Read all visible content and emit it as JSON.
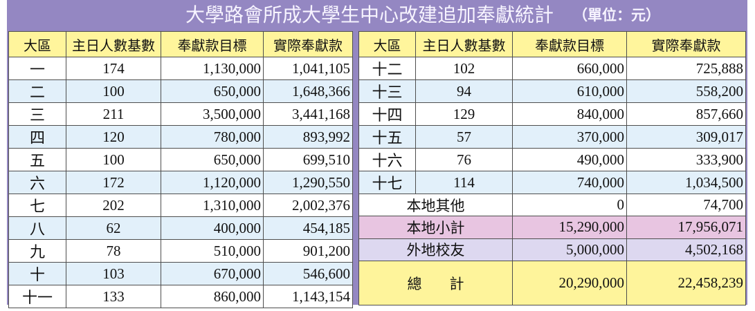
{
  "title": "大學路會所成大學生中心改建追加奉獻統計",
  "unit": "（單位：元）",
  "headers": {
    "district": "大區",
    "attendance": "主日人數基數",
    "target": "奉獻款目標",
    "actual": "實際奉獻款"
  },
  "left_rows": [
    {
      "district": "一",
      "attendance": "174",
      "target": "1,130,000",
      "actual": "1,041,105"
    },
    {
      "district": "二",
      "attendance": "100",
      "target": "650,000",
      "actual": "1,648,366"
    },
    {
      "district": "三",
      "attendance": "211",
      "target": "3,500,000",
      "actual": "3,441,168"
    },
    {
      "district": "四",
      "attendance": "120",
      "target": "780,000",
      "actual": "893,992"
    },
    {
      "district": "五",
      "attendance": "100",
      "target": "650,000",
      "actual": "699,510"
    },
    {
      "district": "六",
      "attendance": "172",
      "target": "1,120,000",
      "actual": "1,290,550"
    },
    {
      "district": "七",
      "attendance": "202",
      "target": "1,310,000",
      "actual": "2,002,376"
    },
    {
      "district": "八",
      "attendance": "62",
      "target": "400,000",
      "actual": "454,185"
    },
    {
      "district": "九",
      "attendance": "78",
      "target": "510,000",
      "actual": "901,200"
    },
    {
      "district": "十",
      "attendance": "103",
      "target": "670,000",
      "actual": "546,600"
    },
    {
      "district": "十一",
      "attendance": "133",
      "target": "860,000",
      "actual": "1,143,154"
    }
  ],
  "right_rows": [
    {
      "district": "十二",
      "attendance": "102",
      "target": "660,000",
      "actual": "725,888"
    },
    {
      "district": "十三",
      "attendance": "94",
      "target": "610,000",
      "actual": "558,200"
    },
    {
      "district": "十四",
      "attendance": "129",
      "target": "840,000",
      "actual": "857,660"
    },
    {
      "district": "十五",
      "attendance": "57",
      "target": "370,000",
      "actual": "309,017"
    },
    {
      "district": "十六",
      "attendance": "76",
      "target": "490,000",
      "actual": "333,900"
    },
    {
      "district": "十七",
      "attendance": "114",
      "target": "740,000",
      "actual": "1,034,500"
    }
  ],
  "local_other": {
    "label": "本地其他",
    "target": "0",
    "actual": "74,700"
  },
  "local_subtotal": {
    "label": "本地小計",
    "target": "15,290,000",
    "actual": "17,956,071"
  },
  "overseas_alumni": {
    "label": "外地校友",
    "target": "5,000,000",
    "actual": "4,502,168"
  },
  "grand_total": {
    "label": "總計",
    "target": "20,290,000",
    "actual": "22,458,239"
  },
  "colors": {
    "frame": "#9487c2",
    "header": "#fff59c",
    "stripe": "#e2f0fa",
    "subtotal": "#e8c5e1",
    "alumni": "#ddd8f0",
    "total": "#fef49b",
    "title": "#f7f4ff"
  }
}
